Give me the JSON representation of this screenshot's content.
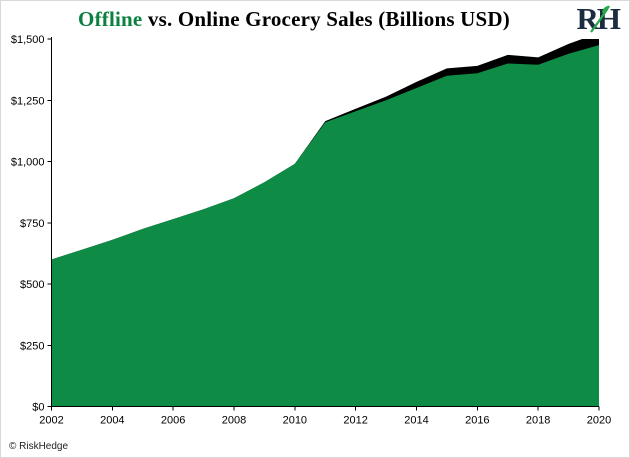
{
  "title": {
    "highlight": "Offline",
    "rest": " vs. Online Grocery Sales (Billions USD)"
  },
  "logo": {
    "text": "RH"
  },
  "footer": {
    "text": "© RiskHedge"
  },
  "colors": {
    "offline_green": "#0e8c45",
    "online_black": "#000000",
    "title_green": "#0b8040",
    "logo_navy": "#1c2d42",
    "logo_leaf_green": "#2aa84a",
    "axis": "#000000"
  },
  "chart_data": {
    "type": "area",
    "stacked": true,
    "title": "Offline vs. Online Grocery Sales (Billions USD)",
    "xlabel": "",
    "ylabel": "",
    "grid": false,
    "legend": "none",
    "x": [
      2002,
      2003,
      2004,
      2005,
      2006,
      2007,
      2008,
      2009,
      2010,
      2011,
      2012,
      2013,
      2014,
      2015,
      2016,
      2017,
      2018,
      2019,
      2020
    ],
    "series": [
      {
        "name": "Offline",
        "color": "#0e8c45",
        "values": [
          600,
          640,
          680,
          725,
          765,
          805,
          850,
          915,
          990,
          1160,
          1205,
          1250,
          1300,
          1350,
          1360,
          1400,
          1395,
          1440,
          1475
        ]
      },
      {
        "name": "Online",
        "color": "#000000",
        "values": [
          0,
          0,
          0,
          0,
          0,
          0,
          0,
          0,
          0,
          5,
          10,
          15,
          25,
          30,
          30,
          35,
          30,
          40,
          50
        ]
      }
    ],
    "ylim": [
      0,
      1500
    ],
    "yticks": [
      0,
      250,
      500,
      750,
      1000,
      1250,
      1500
    ],
    "ytick_labels": [
      "$0",
      "$250",
      "$500",
      "$750",
      "$1,000",
      "$1,250",
      "$1,500"
    ],
    "xticks": [
      2002,
      2004,
      2006,
      2008,
      2010,
      2012,
      2014,
      2016,
      2018,
      2020
    ]
  }
}
